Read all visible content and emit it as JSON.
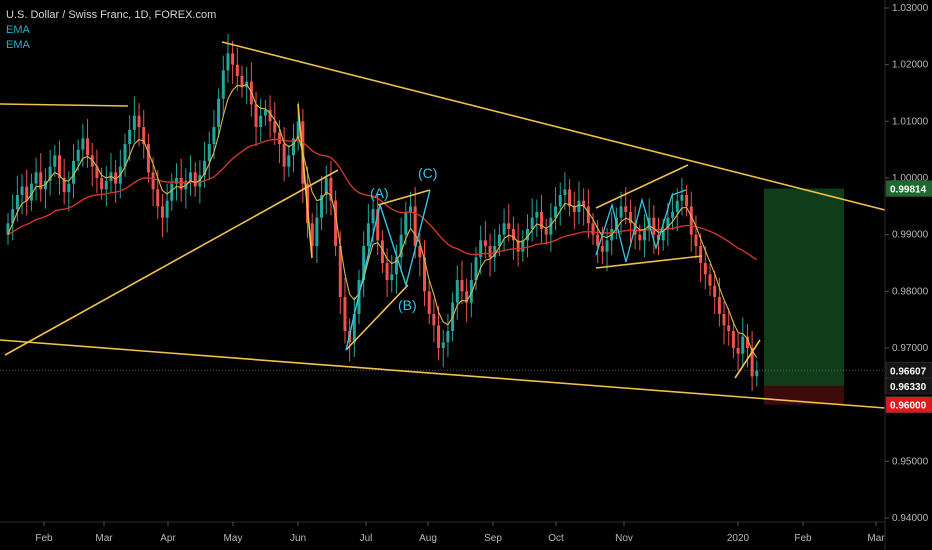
{
  "legend": {
    "title": "U.S. Dollar / Swiss Franc, 1D, FOREX.com",
    "indicators": [
      "EMA",
      "EMA"
    ]
  },
  "colors": {
    "background": "#000000",
    "up_candle": "#26a69a",
    "down_candle": "#ef5350",
    "ema_fast": "#d9b84a",
    "ema_slow": "#d0342c",
    "trendline": "#f0c24a",
    "wave": "#36c5e0",
    "profit_zone": "#0f3d1a",
    "loss_zone": "#3d0a0a",
    "axis_text": "#b8b8b8"
  },
  "chart_data": {
    "type": "candlestick",
    "title": "U.S. Dollar / Swiss Franc, 1D, FOREX.com",
    "ylim": [
      0.94,
      1.03
    ],
    "y_ticks": [
      "1.03000",
      "1.02000",
      "1.01000",
      "1.00000",
      "0.99000",
      "0.98000",
      "0.97000",
      "0.95000",
      "0.94000"
    ],
    "x_ticks": [
      "Feb",
      "Mar",
      "Apr",
      "May",
      "Jun",
      "Jul",
      "Aug",
      "Sep",
      "Oct",
      "Nov",
      "2020",
      "Feb",
      "Mar"
    ],
    "price_tags": [
      {
        "label": "0.99814",
        "bg": "#1d6b2c",
        "fg": "#ffffff"
      },
      {
        "label": "0.96607",
        "bg": "#141414",
        "fg": "#ffffff"
      },
      {
        "label": "0.96330",
        "bg": "#141414",
        "fg": "#ffffff"
      },
      {
        "label": "0.96000",
        "bg": "#e0191f",
        "fg": "#ffffff"
      }
    ],
    "wave_labels": [
      "(A)",
      "(B)",
      "(C)"
    ],
    "series_close": [
      0.992,
      0.9945,
      0.997,
      0.9985,
      0.996,
      0.999,
      1.001,
      0.998,
      0.9995,
      1.002,
      1.004,
      1.0,
      0.9975,
      0.999,
      1.003,
      1.005,
      1.007,
      1.004,
      1.002,
      1.0,
      0.998,
      0.9995,
      1.001,
      0.999,
      1.002,
      1.006,
      1.0085,
      1.011,
      1.009,
      1.006,
      1.001,
      0.998,
      0.995,
      0.993,
      0.996,
      0.999,
      1.0,
      0.998,
      0.9995,
      1.001,
      0.9985,
      1.0005,
      1.003,
      1.006,
      1.009,
      1.014,
      1.019,
      1.022,
      1.02,
      1.018,
      1.016,
      1.017,
      1.013,
      1.009,
      1.011,
      1.012,
      1.01,
      1.008,
      1.006,
      1.002,
      1.004,
      1.007,
      1.01,
      0.999,
      0.992,
      0.988,
      0.993,
      0.997,
      1.0,
      0.996,
      0.988,
      0.979,
      0.973,
      0.971,
      0.976,
      0.982,
      0.988,
      0.992,
      0.9945,
      0.989,
      0.985,
      0.982,
      0.983,
      0.986,
      0.99,
      0.994,
      0.995,
      0.988,
      0.986,
      0.98,
      0.976,
      0.974,
      0.97,
      0.971,
      0.973,
      0.978,
      0.982,
      0.98,
      0.978,
      0.982,
      0.986,
      0.989,
      0.988,
      0.986,
      0.988,
      0.99,
      0.992,
      0.991,
      0.989,
      0.987,
      0.989,
      0.991,
      0.993,
      0.994,
      0.991,
      0.99,
      0.993,
      0.995,
      0.997,
      0.998,
      0.995,
      0.994,
      0.996,
      0.995,
      0.992,
      0.99,
      0.988,
      0.987,
      0.989,
      0.991,
      0.993,
      0.995,
      0.994,
      0.992,
      0.99,
      0.989,
      0.991,
      0.993,
      0.99,
      0.989,
      0.991,
      0.993,
      0.994,
      0.996,
      0.997,
      0.995,
      0.99,
      0.988,
      0.985,
      0.983,
      0.981,
      0.979,
      0.976,
      0.974,
      0.973,
      0.97,
      0.969,
      0.972,
      0.97,
      0.965,
      0.966
    ],
    "ema_fast": [
      0.99,
      0.992,
      0.994,
      0.9955,
      0.996,
      0.997,
      0.9985,
      0.9985,
      0.9988,
      1.0,
      1.001,
      1.0005,
      0.9995,
      0.9995,
      1.0005,
      1.002,
      1.0035,
      1.0038,
      1.0032,
      1.002,
      1.0005,
      1.0,
      1.0003,
      0.9998,
      1.0005,
      1.002,
      1.004,
      1.006,
      1.0068,
      1.0065,
      1.0045,
      1.0025,
      1.0,
      0.9978,
      0.9972,
      0.9978,
      0.9985,
      0.9983,
      0.9987,
      0.9995,
      0.9992,
      0.9996,
      1.0008,
      1.0025,
      1.0045,
      1.0075,
      1.011,
      1.014,
      1.0155,
      1.0163,
      1.0162,
      1.0165,
      1.0152,
      1.013,
      1.0123,
      1.0122,
      1.0114,
      1.0102,
      1.0088,
      1.0062,
      1.0055,
      1.006,
      1.0073,
      1.0045,
      1.001,
      0.9975,
      0.996,
      0.9963,
      0.9975,
      0.997,
      0.9935,
      0.988,
      0.983,
      0.9795,
      0.9785,
      0.9796,
      0.9823,
      0.9855,
      0.9883,
      0.9886,
      0.9874,
      0.9857,
      0.9849,
      0.9853,
      0.9869,
      0.9893,
      0.9911,
      0.99,
      0.9886,
      0.9856,
      0.982,
      0.9794,
      0.9763,
      0.9746,
      0.9741,
      0.9754,
      0.9776,
      0.9784,
      0.9783,
      0.9796,
      0.9818,
      0.9842,
      0.9855,
      0.9857,
      0.9865,
      0.9878,
      0.9893,
      0.9899,
      0.9896,
      0.9887,
      0.9888,
      0.9896,
      0.9908,
      0.9919,
      0.9916,
      0.9911,
      0.9917,
      0.9928,
      0.9942,
      0.9955,
      0.9953,
      0.9949,
      0.9952,
      0.9951,
      0.994,
      0.9927,
      0.9911,
      0.9897,
      0.9895,
      0.99,
      0.991,
      0.9923,
      0.9929,
      0.9926,
      0.9917,
      0.9908,
      0.9909,
      0.9916,
      0.9911,
      0.9904,
      0.9906,
      0.9914,
      0.9923,
      0.9935,
      0.9947,
      0.9948,
      0.9932,
      0.9915,
      0.9893,
      0.9872,
      0.9852,
      0.9831,
      0.9807,
      0.9785,
      0.9767,
      0.9745,
      0.9727,
      0.9725,
      0.9717,
      0.9695,
      0.9683
    ],
    "ema_slow": [
      0.99,
      0.9905,
      0.991,
      0.9915,
      0.9918,
      0.9922,
      0.9927,
      0.9929,
      0.9932,
      0.9936,
      0.9942,
      0.9944,
      0.9945,
      0.9947,
      0.9951,
      0.9956,
      0.9962,
      0.9966,
      0.9969,
      0.997,
      0.9971,
      0.9972,
      0.9974,
      0.9975,
      0.9977,
      0.9981,
      0.9986,
      0.9992,
      0.9997,
      1.0,
      1.0,
      0.9999,
      0.9997,
      0.9994,
      0.9993,
      0.9993,
      0.9993,
      0.9992,
      0.9992,
      0.9993,
      0.9993,
      0.9993,
      0.9995,
      0.9998,
      1.0002,
      1.0009,
      1.0017,
      1.0026,
      1.0034,
      1.0041,
      1.0047,
      1.0053,
      1.0057,
      1.0059,
      1.0062,
      1.0065,
      1.0067,
      1.0068,
      1.0068,
      1.0066,
      1.0065,
      1.0065,
      1.0067,
      1.0063,
      1.0056,
      1.0048,
      1.0043,
      1.004,
      1.0039,
      1.0036,
      1.0028,
      1.0017,
      1.0003,
      0.999,
      0.998,
      0.9974,
      0.9971,
      0.9969,
      0.9968,
      0.9964,
      0.9958,
      0.9951,
      0.9945,
      0.9941,
      0.9939,
      0.9939,
      0.994,
      0.9937,
      0.9934,
      0.9927,
      0.9919,
      0.991,
      0.99,
      0.9891,
      0.9883,
      0.9878,
      0.9875,
      0.9871,
      0.9867,
      0.9865,
      0.9865,
      0.9866,
      0.9867,
      0.9867,
      0.9868,
      0.987,
      0.9872,
      0.9874,
      0.9875,
      0.9875,
      0.9876,
      0.9878,
      0.988,
      0.9883,
      0.9884,
      0.9885,
      0.9887,
      0.989,
      0.9894,
      0.9897,
      0.9899,
      0.9901,
      0.9903,
      0.9905,
      0.9905,
      0.9905,
      0.9904,
      0.9903,
      0.9903,
      0.9903,
      0.9904,
      0.9906,
      0.9907,
      0.9908,
      0.9908,
      0.9907,
      0.9908,
      0.9909,
      0.9909,
      0.9909,
      0.9909,
      0.991,
      0.9911,
      0.9913,
      0.9915,
      0.9916,
      0.9916,
      0.9914,
      0.9912,
      0.9909,
      0.9906,
      0.9902,
      0.9898,
      0.9893,
      0.9888,
      0.9882,
      0.9876,
      0.9872,
      0.9867,
      0.9861,
      0.9856
    ]
  }
}
